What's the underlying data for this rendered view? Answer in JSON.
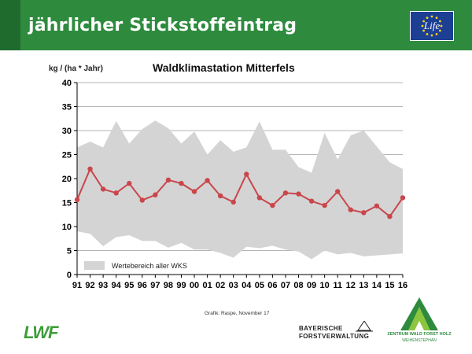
{
  "header": {
    "title": "jährlicher Stickstoffeintrag",
    "eu_logo_text": "Life",
    "bg_color": "#2e8b3e"
  },
  "chart_data": {
    "type": "line",
    "title": "Waldklimastation Mitterfels",
    "ylabel": "kg / (ha * Jahr)",
    "xlabel": "",
    "ylim": [
      0,
      40
    ],
    "yticks": [
      0,
      5,
      10,
      15,
      20,
      25,
      30,
      35,
      40
    ],
    "grid": true,
    "categories": [
      "91",
      "92",
      "93",
      "94",
      "95",
      "96",
      "97",
      "98",
      "99",
      "00",
      "01",
      "02",
      "03",
      "04",
      "05",
      "06",
      "07",
      "08",
      "09",
      "10",
      "11",
      "12",
      "13",
      "14",
      "15",
      "16"
    ],
    "series": [
      {
        "values": [
          15.6,
          22.0,
          17.8,
          17.0,
          19.0,
          15.5,
          16.6,
          19.7,
          19.0,
          17.3,
          19.6,
          16.4,
          15.1,
          20.9,
          16.0,
          14.4,
          17.0,
          16.8,
          15.3,
          14.4,
          17.3,
          13.5,
          12.9,
          14.3,
          12.1,
          16.0
        ],
        "color": "#c9464b"
      }
    ],
    "range_band": {
      "name": "Wertebereich aller WKS",
      "upper": [
        26.5,
        27.7,
        26.5,
        32.0,
        27.3,
        30.3,
        32.1,
        30.5,
        27.3,
        29.8,
        25.0,
        28.0,
        25.6,
        26.5,
        31.9,
        26.0,
        26.0,
        22.4,
        21.2,
        29.5,
        24.0,
        29.0,
        30.0,
        26.7,
        23.4,
        22.0
      ],
      "lower": [
        9.0,
        8.5,
        5.9,
        7.8,
        8.2,
        7.0,
        7.0,
        5.6,
        6.6,
        5.2,
        5.2,
        4.5,
        3.5,
        5.8,
        5.5,
        6.0,
        5.2,
        4.8,
        3.2,
        5.0,
        4.2,
        4.5,
        3.8,
        4.0,
        4.2,
        4.4
      ],
      "color": "#d4d4d4"
    },
    "legend_position": "bottom-left"
  },
  "footer": {
    "credit": "Grafik: Raspe, November 17",
    "lwf_logo": "LWF",
    "bfv_line1": "BAYERISCHE",
    "bfv_line2": "FORSTVERWALTUNG",
    "zwfh_line1": "ZENTRUM WALD FORST HOLZ",
    "zwfh_line2": "WEIHENSTEPHAN",
    "logo_green": "#3f9b3a"
  }
}
